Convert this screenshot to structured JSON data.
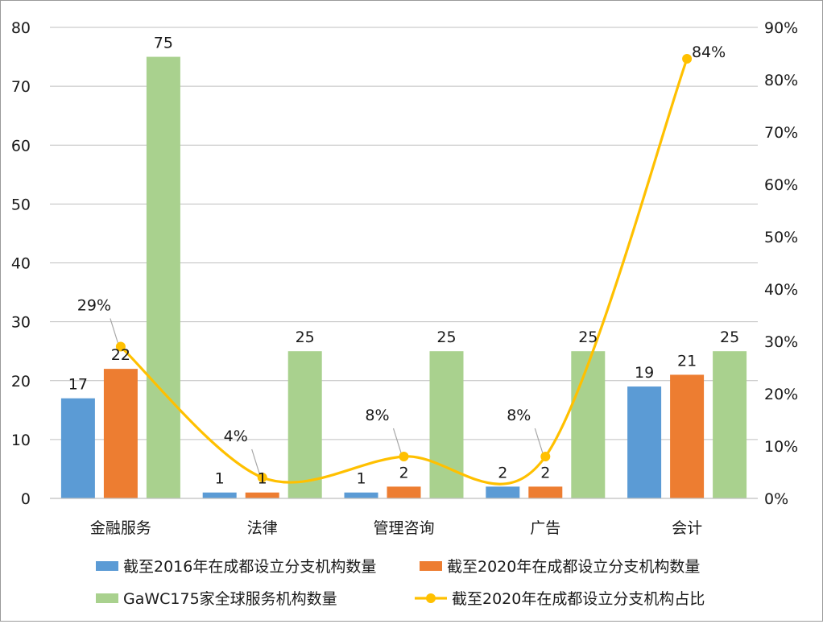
{
  "chart_data": {
    "type": "bar",
    "categories": [
      "金融服务",
      "法律",
      "管理咨询",
      "广告",
      "会计"
    ],
    "series": [
      {
        "name": "截至2016年在成都设立分支机构数量",
        "type": "bar",
        "axis": "left",
        "color": "#5b9bd5",
        "values": [
          17,
          1,
          1,
          2,
          19
        ]
      },
      {
        "name": "截至2020年在成都设立分支机构数量",
        "type": "bar",
        "axis": "left",
        "color": "#ed7d31",
        "values": [
          22,
          1,
          2,
          2,
          21
        ]
      },
      {
        "name": "GaWC175家全球服务机构数量",
        "type": "bar",
        "axis": "left",
        "color": "#a9d18e",
        "values": [
          75,
          25,
          25,
          25,
          25
        ]
      },
      {
        "name": "截至2020年在成都设立分支机构占比",
        "type": "line",
        "axis": "right",
        "color": "#ffc000",
        "smooth": true,
        "values": [
          29,
          4,
          8,
          8,
          84
        ],
        "labels": [
          "29%",
          "4%",
          "8%",
          "8%",
          "84%"
        ]
      }
    ],
    "y_left": {
      "min": 0,
      "max": 80,
      "ticks": [
        "0",
        "10",
        "20",
        "30",
        "40",
        "50",
        "60",
        "70",
        "80"
      ]
    },
    "y_right": {
      "min": 0,
      "max": 90,
      "ticks": [
        "0%",
        "10%",
        "20%",
        "30%",
        "40%",
        "50%",
        "60%",
        "70%",
        "80%",
        "90%"
      ]
    },
    "grid": true,
    "legend_position": "bottom",
    "title": "",
    "xlabel": "",
    "ylabel": ""
  }
}
